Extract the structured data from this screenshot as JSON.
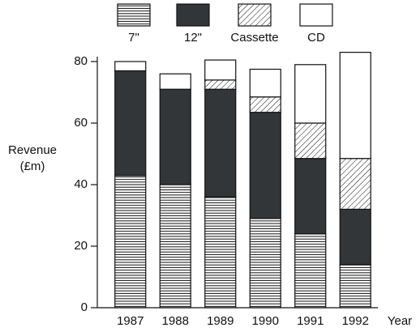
{
  "chart_data": {
    "type": "stacked-bar",
    "categories": [
      "1987",
      "1988",
      "1989",
      "1990",
      "1991",
      "1992"
    ],
    "series": [
      {
        "name": "7\"",
        "color": "#ffffff",
        "pattern": "horizontal-lines",
        "values": [
          43,
          40,
          36,
          29,
          24,
          14
        ]
      },
      {
        "name": "12\"",
        "color": "#333638",
        "pattern": "solid",
        "values": [
          34,
          31,
          35,
          34.5,
          24.5,
          18
        ]
      },
      {
        "name": "Cassette",
        "color": "#ffffff",
        "pattern": "diagonal-hatch",
        "values": [
          0,
          0,
          3,
          5,
          11.5,
          16.5
        ]
      },
      {
        "name": "CD",
        "color": "#ffffff",
        "pattern": "solid",
        "values": [
          3,
          5,
          6.5,
          9,
          19,
          34.5
        ]
      }
    ],
    "ylabel": [
      "Revenue",
      "(£m)"
    ],
    "xlabel": "Year",
    "ylim": [
      0,
      80
    ],
    "yticks": [
      0,
      20,
      40,
      60,
      80
    ],
    "legend": "top"
  }
}
